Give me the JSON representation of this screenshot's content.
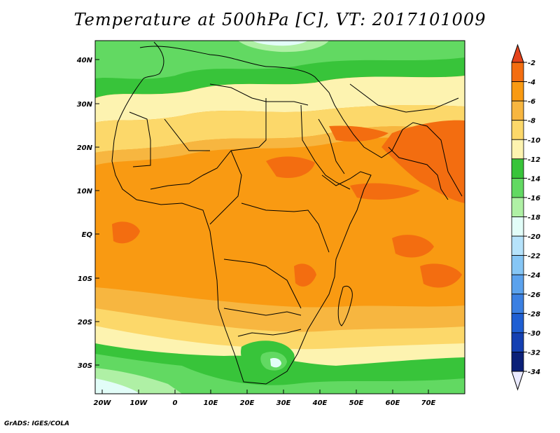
{
  "title": "Temperature at 500hPa [C], VT: 2017101009",
  "credit": "GrADS: IGES/COLA",
  "map": {
    "lat_labels": [
      "40N",
      "30N",
      "20N",
      "10N",
      "EQ",
      "10S",
      "20S",
      "30S"
    ],
    "lon_labels": [
      "20W",
      "10W",
      "0",
      "10E",
      "20E",
      "30E",
      "40E",
      "50E",
      "60E",
      "70E"
    ]
  },
  "legend": {
    "labels": [
      "-2",
      "-4",
      "-6",
      "-8",
      "-10",
      "-12",
      "-14",
      "-16",
      "-18",
      "-20",
      "-22",
      "-24",
      "-26",
      "-28",
      "-30",
      "-32",
      "-34"
    ],
    "colors": [
      "#e4431b",
      "#f36d10",
      "#f99a12",
      "#f7b640",
      "#fcd86a",
      "#fdf3b0",
      "#38c43a",
      "#62d962",
      "#aff0a5",
      "#e2fdf8",
      "#b6e3fb",
      "#86c6f5",
      "#5ba2ed",
      "#3b80e2",
      "#1f5fd3",
      "#1440b2",
      "#0b2078",
      "#eaeaff"
    ]
  }
}
